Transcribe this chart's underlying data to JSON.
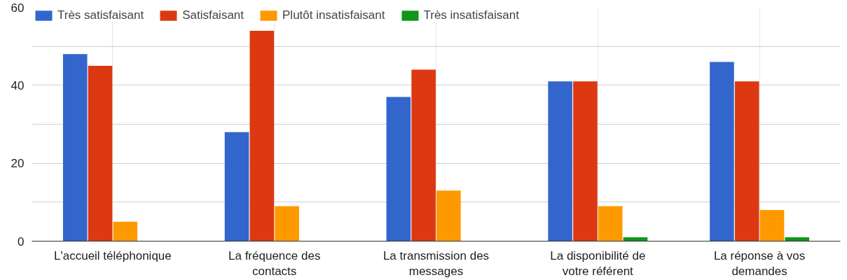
{
  "chart_data": {
    "type": "bar",
    "categories": [
      "L'accueil téléphonique",
      "La fréquence des contacts",
      "La transmission des messages",
      "La disponibilité de votre référent",
      "La réponse à vos demandes"
    ],
    "series": [
      {
        "name": "Très satisfaisant",
        "color": "#3366cc",
        "values": [
          48,
          28,
          37,
          41,
          46
        ]
      },
      {
        "name": "Satisfaisant",
        "color": "#dc3912",
        "values": [
          45,
          54,
          44,
          41,
          41
        ]
      },
      {
        "name": "Plutôt insatisfaisant",
        "color": "#ff9900",
        "values": [
          5,
          9,
          13,
          9,
          8
        ]
      },
      {
        "name": "Très insatisfaisant",
        "color": "#109618",
        "values": [
          0,
          0,
          0,
          1,
          1
        ]
      }
    ],
    "ylim": [
      0,
      60
    ],
    "yticks": [
      0,
      {
        "value": 10,
        "label": null
      },
      20,
      {
        "value": 30,
        "label": null
      },
      40,
      {
        "value": 50,
        "label": null
      },
      60
    ],
    "grid": true,
    "legend": "top"
  }
}
